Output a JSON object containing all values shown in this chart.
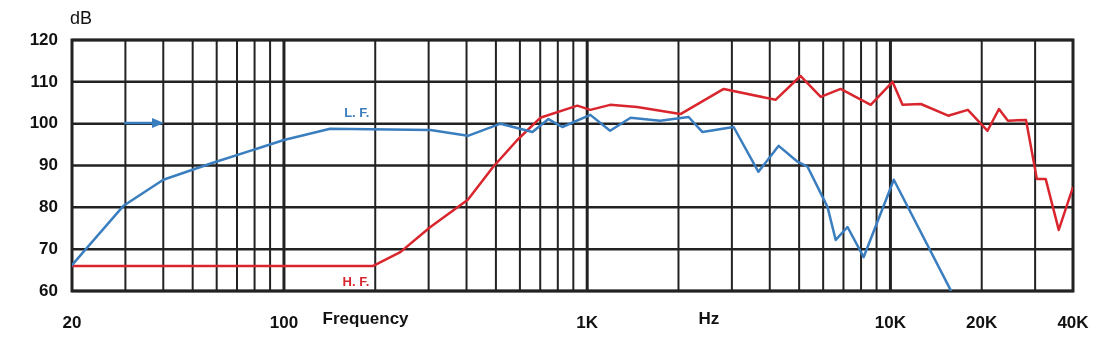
{
  "chart_data": {
    "type": "line",
    "ylabel": "dB",
    "xlabel": "Frequency",
    "annotations": [
      "Hz"
    ],
    "log": "x",
    "grid": true,
    "legend": false,
    "marker": "none",
    "line_style": "solid",
    "xlim": [
      20,
      40000
    ],
    "xticks": [
      20,
      100,
      {
        "value": 1000,
        "label": "1K"
      },
      {
        "value": 10000,
        "label": "10K"
      },
      {
        "value": 20000,
        "label": "20K"
      },
      {
        "value": 40000,
        "label": "40K"
      }
    ],
    "ylim": [
      60,
      120
    ],
    "yticks": [
      60,
      70,
      80,
      90,
      100,
      110,
      120
    ],
    "series": [
      {
        "name": "L. F.",
        "color": "#3a7ebf",
        "x": [
          20,
          29.5,
          40,
          58,
          100,
          142,
          304,
          404,
          518,
          660,
          745,
          828,
          1024,
          1190,
          1390,
          1740,
          2160,
          2400,
          3040,
          3670,
          4280,
          4940,
          5330,
          6200,
          6600,
          7220,
          8160,
          10260,
          15800
        ],
        "values": [
          66.2,
          80.3,
          86.6,
          90.6,
          96.1,
          98.8,
          98.5,
          97.1,
          100,
          98,
          101.1,
          99.2,
          102.1,
          98.3,
          101.4,
          100.7,
          101.6,
          98,
          99.2,
          88.5,
          94.7,
          90.9,
          89.7,
          80.1,
          72.2,
          75.3,
          68.1,
          86.6,
          60.2
        ]
      },
      {
        "name": "H. F.",
        "color": "#d9262e",
        "x": [
          20,
          197,
          242,
          304,
          404,
          490,
          588,
          700,
          928,
          1024,
          1190,
          1460,
          2030,
          2820,
          4180,
          5050,
          5890,
          6850,
          8610,
          10160,
          10960,
          12600,
          15500,
          18000,
          20900,
          22800,
          24400,
          28000,
          30400,
          32500,
          35900,
          39900
        ],
        "values": [
          66,
          66,
          69.3,
          75.3,
          81.8,
          89.7,
          96.1,
          101.4,
          104.3,
          103.3,
          104.5,
          104,
          102.3,
          108.3,
          105.7,
          111.4,
          106.4,
          108.3,
          104.5,
          110,
          104.5,
          104.7,
          101.9,
          103.3,
          98.3,
          103.5,
          100.7,
          100.9,
          86.8,
          86.8,
          74.6,
          84.6
        ]
      }
    ]
  }
}
